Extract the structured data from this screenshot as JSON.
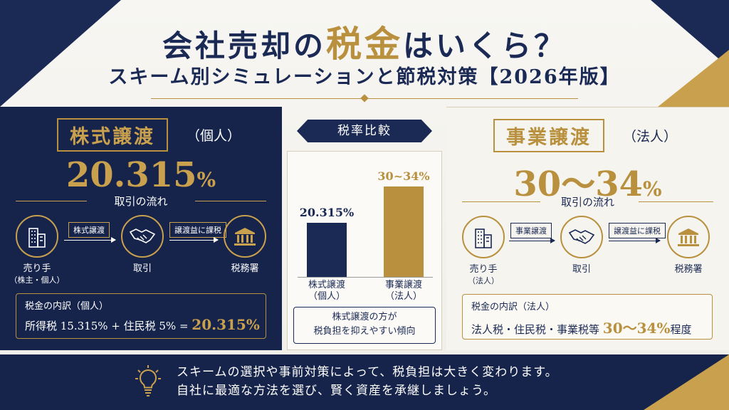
{
  "header": {
    "title_pre": "会社売却の",
    "title_highlight": "税金",
    "title_post": "はいくら？",
    "subtitle": "スキーム別シミュレーションと節税対策【2026年版】"
  },
  "left_card": {
    "title": "株式譲渡",
    "subtitle": "（個人）",
    "rate_num": "20.315",
    "rate_unit": "%",
    "flow_label": "取引の流れ",
    "seller_label_1": "売り手",
    "seller_label_2": "（株主・個人）",
    "deal_label": "取引",
    "tax_office_label": "税務署",
    "step1": "株式譲渡",
    "step2": "譲渡益に課税",
    "breakdown_title": "税金の内訳（個人）",
    "breakdown_text": "所得税 15.315% + 住民税 5% = ",
    "breakdown_value": "20.315%"
  },
  "center": {
    "ribbon": "税率比較",
    "note_line1": "株式譲渡の方が",
    "note_line2": "税負担を抑えやすい傾向"
  },
  "chart_data": {
    "type": "bar",
    "categories": [
      "株式譲渡（個人）",
      "事業譲渡（法人）"
    ],
    "category_lines": [
      [
        "株式譲渡",
        "（個人）"
      ],
      [
        "事業譲渡",
        "（法人）"
      ]
    ],
    "values": [
      20.315,
      34
    ],
    "value_labels": [
      "20.315%",
      "30~34%"
    ],
    "colors": [
      "#1b2a55",
      "#b8903e"
    ],
    "ylim": [
      0,
      40
    ],
    "title": "税率比較"
  },
  "right_card": {
    "title": "事業譲渡",
    "subtitle": "（法人）",
    "rate_num": "30～34",
    "rate_unit": "%",
    "flow_label": "取引の流れ",
    "seller_label_1": "売り手",
    "seller_label_2": "（法人）",
    "deal_label": "取引",
    "tax_office_label": "税務署",
    "step1": "事業譲渡",
    "step2": "譲渡益に課税",
    "breakdown_title": "税金の内訳（法人）",
    "breakdown_text": "法人税・住民税・事業税等 ",
    "breakdown_value": "30～34%",
    "breakdown_suffix": "程度"
  },
  "footer": {
    "line1": "スキームの選択や事前対策によって、税負担は大きく変わります。",
    "line2": "自社に最適な方法を選び、賢く資産を承継しましょう。"
  },
  "icons": [
    "building-icon",
    "handshake-icon",
    "tax-office-icon",
    "lightbulb-icon"
  ]
}
